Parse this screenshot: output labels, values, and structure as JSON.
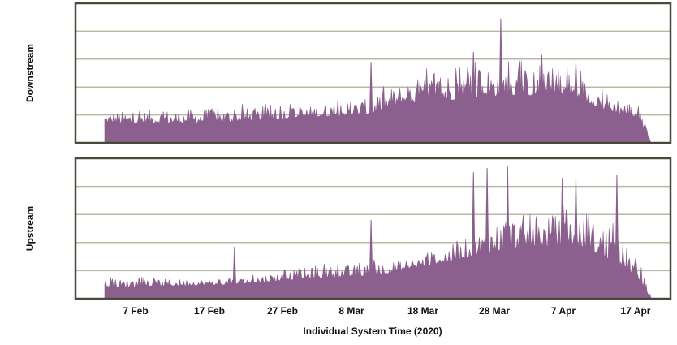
{
  "chart_data": [
    {
      "type": "area",
      "ylabel": "Downstream",
      "xlabel": "",
      "series_color": "#8b5f8e",
      "grid": true,
      "grid_lines": 4,
      "x_tick_labels": [
        "7 Feb",
        "17 Feb",
        "27 Feb",
        "8 Mar",
        "18 Mar",
        "28 Mar",
        "7 Apr",
        "17 Apr"
      ],
      "x_start": "2020-01-29",
      "x_end": "2020-04-18",
      "ylim_fraction": [
        0,
        1
      ],
      "envelope": [
        {
          "date": "2020-01-29",
          "base": 0.14,
          "peak": 0.22
        },
        {
          "date": "2020-02-07",
          "base": 0.14,
          "peak": 0.24
        },
        {
          "date": "2020-02-17",
          "base": 0.15,
          "peak": 0.25
        },
        {
          "date": "2020-02-27",
          "base": 0.18,
          "peak": 0.26
        },
        {
          "date": "2020-03-08",
          "base": 0.2,
          "peak": 0.32
        },
        {
          "date": "2020-03-13",
          "base": 0.28,
          "peak": 0.45
        },
        {
          "date": "2020-03-18",
          "base": 0.3,
          "peak": 0.5
        },
        {
          "date": "2020-03-23",
          "base": 0.32,
          "peak": 0.55
        },
        {
          "date": "2020-03-28",
          "base": 0.34,
          "peak": 0.55
        },
        {
          "date": "2020-04-07",
          "base": 0.32,
          "peak": 0.5
        },
        {
          "date": "2020-04-12",
          "base": 0.22,
          "peak": 0.35
        },
        {
          "date": "2020-04-16",
          "base": 0.18,
          "peak": 0.28
        },
        {
          "date": "2020-04-18",
          "base": 0.0,
          "peak": 0.02
        }
      ],
      "notable_peaks": [
        {
          "date": "2020-03-08",
          "level": 0.58
        },
        {
          "date": "2020-03-18",
          "level": 0.44
        },
        {
          "date": "2020-03-23",
          "level": 0.65
        },
        {
          "date": "2020-03-27",
          "level": 0.89
        },
        {
          "date": "2020-04-02",
          "level": 0.63
        },
        {
          "date": "2020-04-07",
          "level": 0.58
        }
      ]
    },
    {
      "type": "area",
      "ylabel": "Upstream",
      "xlabel": "Individual System Time (2020)",
      "series_color": "#8b5f8e",
      "grid": true,
      "grid_lines": 4,
      "x_tick_labels": [
        "7 Feb",
        "17 Feb",
        "27 Feb",
        "8 Mar",
        "18 Mar",
        "28 Mar",
        "7 Apr",
        "17 Apr"
      ],
      "x_start": "2020-01-29",
      "x_end": "2020-04-18",
      "ylim_fraction": [
        0,
        1
      ],
      "envelope": [
        {
          "date": "2020-01-29",
          "base": 0.08,
          "peak": 0.14
        },
        {
          "date": "2020-02-07",
          "base": 0.09,
          "peak": 0.14
        },
        {
          "date": "2020-02-17",
          "base": 0.1,
          "peak": 0.14
        },
        {
          "date": "2020-02-27",
          "base": 0.14,
          "peak": 0.22
        },
        {
          "date": "2020-03-08",
          "base": 0.16,
          "peak": 0.25
        },
        {
          "date": "2020-03-13",
          "base": 0.2,
          "peak": 0.28
        },
        {
          "date": "2020-03-18",
          "base": 0.25,
          "peak": 0.35
        },
        {
          "date": "2020-03-23",
          "base": 0.3,
          "peak": 0.45
        },
        {
          "date": "2020-03-28",
          "base": 0.35,
          "peak": 0.6
        },
        {
          "date": "2020-04-07",
          "base": 0.38,
          "peak": 0.6
        },
        {
          "date": "2020-04-12",
          "base": 0.28,
          "peak": 0.5
        },
        {
          "date": "2020-04-16",
          "base": 0.15,
          "peak": 0.28
        },
        {
          "date": "2020-04-18",
          "base": 0.0,
          "peak": 0.02
        }
      ],
      "notable_peaks": [
        {
          "date": "2020-02-17",
          "level": 0.37
        },
        {
          "date": "2020-03-08",
          "level": 0.56
        },
        {
          "date": "2020-03-23",
          "level": 0.9
        },
        {
          "date": "2020-03-25",
          "level": 0.93
        },
        {
          "date": "2020-03-28",
          "level": 0.94
        },
        {
          "date": "2020-04-05",
          "level": 0.86
        },
        {
          "date": "2020-04-07",
          "level": 0.86
        },
        {
          "date": "2020-04-13",
          "level": 0.88
        }
      ]
    }
  ]
}
